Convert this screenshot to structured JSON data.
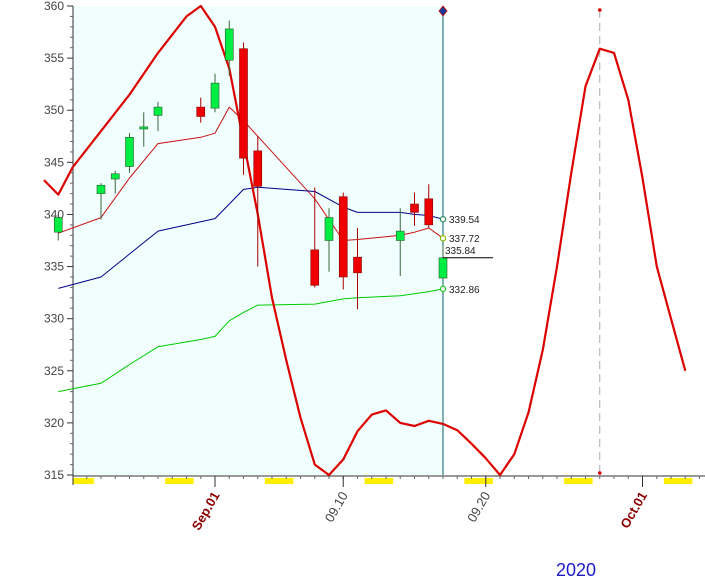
{
  "chart_data": {
    "type": "candlestick",
    "year_label": "2020",
    "y_axis": {
      "ylim": [
        315,
        360
      ],
      "ticks": [
        360,
        355,
        350,
        345,
        340,
        335,
        330,
        325,
        320,
        315
      ]
    },
    "x_axis": {
      "labels": [
        {
          "text": "Sep.01",
          "date": "2020-09-01",
          "style": "month"
        },
        {
          "text": "09.10",
          "date": "2020-09-10",
          "style": "day"
        },
        {
          "text": "09.20",
          "date": "2020-09-20",
          "style": "day"
        },
        {
          "text": "Oct.01",
          "date": "2020-10-01",
          "style": "month"
        }
      ]
    },
    "colors": {
      "shaded_bg": "#f0fefe",
      "up_candle": "#00ee44",
      "down_candle": "#ee0000",
      "wave_line": "#dd0000",
      "upper_band": "#cc1111",
      "middle_band": "#000088",
      "lower_band": "#00cc00",
      "weekend_marks": "#ffee00",
      "month_label": "#8b0000",
      "day_label": "#444444",
      "year_label": "#1a1acc"
    },
    "candles": [
      {
        "date": "2020-08-21",
        "o": 338.3,
        "h": 340.0,
        "l": 337.5,
        "c": 339.7
      },
      {
        "date": "2020-08-24",
        "o": 342.0,
        "h": 343.0,
        "l": 339.5,
        "c": 342.8
      },
      {
        "date": "2020-08-25",
        "o": 343.4,
        "h": 344.2,
        "l": 342.0,
        "c": 343.9
      },
      {
        "date": "2020-08-26",
        "o": 344.6,
        "h": 347.8,
        "l": 344.0,
        "c": 347.4
      },
      {
        "date": "2020-08-27",
        "o": 348.2,
        "h": 349.8,
        "l": 346.5,
        "c": 348.4
      },
      {
        "date": "2020-08-28",
        "o": 349.5,
        "h": 350.8,
        "l": 348.0,
        "c": 350.3
      },
      {
        "date": "2020-08-31",
        "o": 350.3,
        "h": 351.2,
        "l": 348.8,
        "c": 349.4
      },
      {
        "date": "2020-09-01",
        "o": 350.2,
        "h": 353.5,
        "l": 349.8,
        "c": 352.6
      },
      {
        "date": "2020-09-02",
        "o": 354.8,
        "h": 358.6,
        "l": 353.3,
        "c": 357.8
      },
      {
        "date": "2020-09-03",
        "o": 355.9,
        "h": 356.5,
        "l": 343.8,
        "c": 345.4
      },
      {
        "date": "2020-09-04",
        "o": 346.1,
        "h": 347.5,
        "l": 335.0,
        "c": 342.7
      },
      {
        "date": "2020-09-08",
        "o": 336.6,
        "h": 342.6,
        "l": 333.0,
        "c": 333.2
      },
      {
        "date": "2020-09-09",
        "o": 337.5,
        "h": 340.6,
        "l": 334.5,
        "c": 339.7
      },
      {
        "date": "2020-09-10",
        "o": 341.7,
        "h": 342.1,
        "l": 332.8,
        "c": 334.0
      },
      {
        "date": "2020-09-11",
        "o": 335.9,
        "h": 338.7,
        "l": 330.9,
        "c": 334.4
      },
      {
        "date": "2020-09-14",
        "o": 337.5,
        "h": 340.6,
        "l": 334.1,
        "c": 338.4
      },
      {
        "date": "2020-09-15",
        "o": 341.0,
        "h": 342.1,
        "l": 338.9,
        "c": 340.2
      },
      {
        "date": "2020-09-16",
        "o": 341.5,
        "h": 342.9,
        "l": 338.7,
        "c": 339.0
      },
      {
        "date": "2020-09-17",
        "o": 333.9,
        "h": 337.0,
        "l": 333.8,
        "c": 335.84
      }
    ],
    "series": [
      {
        "key": "upper_band",
        "points": [
          [
            "2020-08-21",
            338.2
          ],
          [
            "2020-08-24",
            339.7
          ],
          [
            "2020-08-26",
            343.5
          ],
          [
            "2020-08-28",
            346.8
          ],
          [
            "2020-08-31",
            347.4
          ],
          [
            "2020-09-01",
            347.8
          ],
          [
            "2020-09-02",
            350.3
          ],
          [
            "2020-09-03",
            349.0
          ],
          [
            "2020-09-04",
            347.5
          ],
          [
            "2020-09-08",
            341.5
          ],
          [
            "2020-09-10",
            337.5
          ],
          [
            "2020-09-11",
            337.6
          ],
          [
            "2020-09-14",
            338.0
          ],
          [
            "2020-09-15",
            338.3
          ],
          [
            "2020-09-16",
            338.7
          ],
          [
            "2020-09-17",
            337.72
          ]
        ]
      },
      {
        "key": "middle_band",
        "points": [
          [
            "2020-08-21",
            332.9
          ],
          [
            "2020-08-24",
            334.0
          ],
          [
            "2020-08-26",
            336.2
          ],
          [
            "2020-08-28",
            338.4
          ],
          [
            "2020-08-31",
            339.3
          ],
          [
            "2020-09-01",
            339.6
          ],
          [
            "2020-09-02",
            341.0
          ],
          [
            "2020-09-03",
            342.4
          ],
          [
            "2020-09-04",
            342.6
          ],
          [
            "2020-09-08",
            342.2
          ],
          [
            "2020-09-10",
            340.7
          ],
          [
            "2020-09-11",
            340.2
          ],
          [
            "2020-09-14",
            340.2
          ],
          [
            "2020-09-15",
            340.0
          ],
          [
            "2020-09-16",
            339.9
          ],
          [
            "2020-09-17",
            339.54
          ]
        ]
      },
      {
        "key": "lower_band",
        "points": [
          [
            "2020-08-21",
            323.0
          ],
          [
            "2020-08-24",
            323.8
          ],
          [
            "2020-08-26",
            325.6
          ],
          [
            "2020-08-28",
            327.3
          ],
          [
            "2020-08-31",
            328.0
          ],
          [
            "2020-09-01",
            328.3
          ],
          [
            "2020-09-02",
            329.8
          ],
          [
            "2020-09-03",
            330.6
          ],
          [
            "2020-09-04",
            331.3
          ],
          [
            "2020-09-08",
            331.4
          ],
          [
            "2020-09-10",
            331.9
          ],
          [
            "2020-09-11",
            332.0
          ],
          [
            "2020-09-14",
            332.2
          ],
          [
            "2020-09-15",
            332.4
          ],
          [
            "2020-09-16",
            332.6
          ],
          [
            "2020-09-17",
            332.86
          ]
        ]
      },
      {
        "key": "wave",
        "points": [
          [
            "2020-08-20",
            343.3
          ],
          [
            "2020-08-21",
            341.9
          ],
          [
            "2020-08-22",
            344.5
          ],
          [
            "2020-08-24",
            348.0
          ],
          [
            "2020-08-26",
            351.5
          ],
          [
            "2020-08-28",
            355.5
          ],
          [
            "2020-08-30",
            359.0
          ],
          [
            "2020-08-31",
            360.0
          ],
          [
            "2020-09-01",
            358.0
          ],
          [
            "2020-09-02",
            354.0
          ],
          [
            "2020-09-03",
            347.0
          ],
          [
            "2020-09-04",
            340.0
          ],
          [
            "2020-09-05",
            332.0
          ],
          [
            "2020-09-06",
            326.0
          ],
          [
            "2020-09-07",
            320.5
          ],
          [
            "2020-09-08",
            316.0
          ],
          [
            "2020-09-09",
            315.0
          ],
          [
            "2020-09-10",
            316.5
          ],
          [
            "2020-09-11",
            319.2
          ],
          [
            "2020-09-12",
            320.8
          ],
          [
            "2020-09-13",
            321.2
          ],
          [
            "2020-09-14",
            320.0
          ],
          [
            "2020-09-15",
            319.7
          ],
          [
            "2020-09-16",
            320.2
          ],
          [
            "2020-09-17",
            319.9
          ],
          [
            "2020-09-18",
            319.3
          ],
          [
            "2020-09-19",
            318.0
          ],
          [
            "2020-09-20",
            316.6
          ],
          [
            "2020-09-21",
            315.0
          ],
          [
            "2020-09-22",
            317.0
          ],
          [
            "2020-09-23",
            321.0
          ],
          [
            "2020-09-24",
            327.0
          ],
          [
            "2020-09-25",
            335.0
          ],
          [
            "2020-09-26",
            344.0
          ],
          [
            "2020-09-27",
            352.3
          ],
          [
            "2020-09-28",
            355.9
          ],
          [
            "2020-09-29",
            355.5
          ],
          [
            "2020-09-30",
            351.0
          ],
          [
            "2020-10-01",
            343.5
          ],
          [
            "2020-10-02",
            335.0
          ],
          [
            "2020-10-03",
            330.0
          ],
          [
            "2020-10-04",
            325.0
          ]
        ]
      }
    ],
    "readouts": [
      {
        "series": "middle_band",
        "text": "339.54",
        "value": 339.54
      },
      {
        "series": "upper_band",
        "text": "337.72",
        "value": 337.72
      },
      {
        "series": "last_close",
        "text": "335.84",
        "value": 335.84
      },
      {
        "series": "lower_band",
        "text": "332.86",
        "value": 332.86
      }
    ],
    "current_date": "2020-09-17",
    "projection_peak_date": "2020-09-28",
    "weekends": [
      [
        "2020-08-22",
        "2020-08-23"
      ],
      [
        "2020-08-29",
        "2020-08-30"
      ],
      [
        "2020-09-05",
        "2020-09-06"
      ],
      [
        "2020-09-12",
        "2020-09-13"
      ],
      [
        "2020-09-19",
        "2020-09-20"
      ],
      [
        "2020-09-26",
        "2020-09-27"
      ],
      [
        "2020-10-03",
        "2020-10-04"
      ]
    ]
  }
}
